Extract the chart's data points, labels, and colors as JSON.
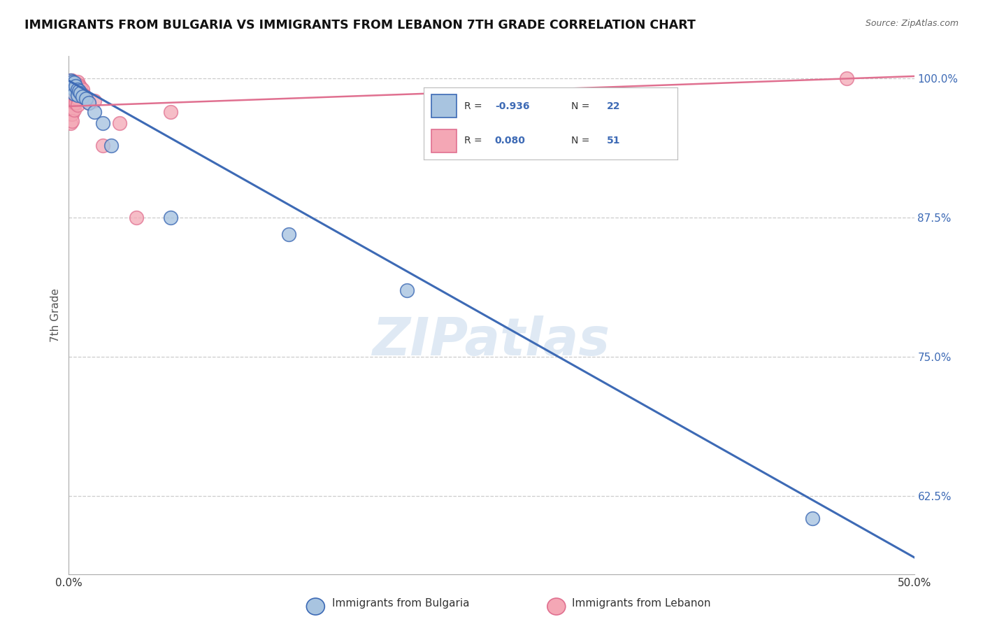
{
  "title": "IMMIGRANTS FROM BULGARIA VS IMMIGRANTS FROM LEBANON 7TH GRADE CORRELATION CHART",
  "source": "Source: ZipAtlas.com",
  "ylabel": "7th Grade",
  "watermark": "ZIPatlas",
  "xlim": [
    0.0,
    0.5
  ],
  "ylim": [
    0.555,
    1.02
  ],
  "xtick_vals": [
    0.0,
    0.5
  ],
  "xtick_labels": [
    "0.0%",
    "50.0%"
  ],
  "ytick_labels_right": [
    "100.0%",
    "87.5%",
    "75.0%",
    "62.5%"
  ],
  "ytick_vals_right": [
    1.0,
    0.875,
    0.75,
    0.625
  ],
  "bulgaria_R": -0.936,
  "bulgaria_N": 22,
  "lebanon_R": 0.08,
  "lebanon_N": 51,
  "bulgaria_color": "#a8c4e0",
  "lebanon_color": "#f4a7b5",
  "bulgaria_line_color": "#3d6ab5",
  "lebanon_line_color": "#e07090",
  "bg_color": "#ffffff",
  "grid_color": "#cccccc",
  "bulgaria_line_x0": 0.0,
  "bulgaria_line_y0": 0.998,
  "bulgaria_line_x1": 0.5,
  "bulgaria_line_y1": 0.57,
  "lebanon_line_x0": 0.0,
  "lebanon_line_y0": 0.975,
  "lebanon_line_x1": 0.5,
  "lebanon_line_y1": 1.002,
  "bulgaria_scatter_x": [
    0.001,
    0.001,
    0.002,
    0.002,
    0.003,
    0.003,
    0.003,
    0.004,
    0.005,
    0.005,
    0.006,
    0.007,
    0.008,
    0.01,
    0.012,
    0.015,
    0.02,
    0.025,
    0.06,
    0.13,
    0.2,
    0.44
  ],
  "bulgaria_scatter_y": [
    0.998,
    0.994,
    0.997,
    0.992,
    0.996,
    0.99,
    0.986,
    0.993,
    0.99,
    0.985,
    0.989,
    0.987,
    0.984,
    0.982,
    0.978,
    0.97,
    0.96,
    0.94,
    0.875,
    0.86,
    0.81,
    0.605
  ],
  "lebanon_scatter_x": [
    0.001,
    0.001,
    0.001,
    0.001,
    0.001,
    0.001,
    0.001,
    0.001,
    0.001,
    0.001,
    0.001,
    0.001,
    0.002,
    0.002,
    0.002,
    0.002,
    0.002,
    0.002,
    0.002,
    0.002,
    0.002,
    0.002,
    0.003,
    0.003,
    0.003,
    0.003,
    0.003,
    0.003,
    0.004,
    0.004,
    0.004,
    0.004,
    0.005,
    0.005,
    0.005,
    0.005,
    0.005,
    0.006,
    0.006,
    0.007,
    0.007,
    0.008,
    0.009,
    0.01,
    0.012,
    0.015,
    0.02,
    0.03,
    0.04,
    0.06,
    0.46
  ],
  "lebanon_scatter_y": [
    0.998,
    0.995,
    0.992,
    0.99,
    0.987,
    0.984,
    0.98,
    0.977,
    0.974,
    0.97,
    0.968,
    0.96,
    0.998,
    0.995,
    0.99,
    0.987,
    0.984,
    0.98,
    0.976,
    0.972,
    0.968,
    0.962,
    0.997,
    0.993,
    0.988,
    0.984,
    0.978,
    0.972,
    0.996,
    0.99,
    0.985,
    0.978,
    0.997,
    0.993,
    0.988,
    0.982,
    0.976,
    0.994,
    0.988,
    0.992,
    0.985,
    0.99,
    0.985,
    0.982,
    0.978,
    0.98,
    0.94,
    0.96,
    0.875,
    0.97,
    1.0
  ],
  "legend_R1_label": "R = -0.936",
  "legend_N1_label": "N = 22",
  "legend_R2_label": "R =  0.080",
  "legend_N2_label": "N = 51"
}
